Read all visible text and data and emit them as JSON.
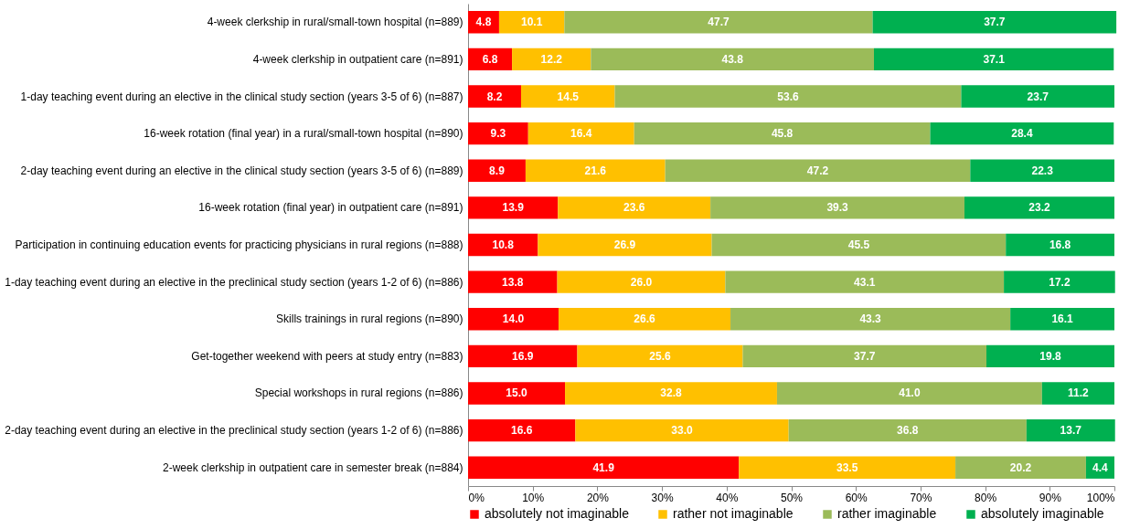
{
  "chart_data": {
    "type": "bar",
    "orientation": "horizontal",
    "stacked": true,
    "grid": false,
    "legend": "bottom",
    "categories": [
      "4-week clerkship in rural/small-town hospital (n=889)",
      "4-week clerkship in outpatient care (n=891)",
      "1-day teaching event during an elective in the clinical study section (years 3-5 of 6) (n=887)",
      "16-week rotation (final year) in a rural/small-town hospital (n=890)",
      "2-day teaching event during an elective in the clinical study section (years 3-5 of 6) (n=889)",
      "16-week rotation (final year) in outpatient care (n=891)",
      "Participation in continuing education events for practicing physicians in rural regions (n=888)",
      "1-day teaching event during an elective in the preclinical study section (years 1-2 of 6) (n=886)",
      "Skills trainings in rural regions (n=890)",
      "Get-together weekend with peers at study entry (n=883)",
      "Special workshops in rural regions (n=886)",
      "2-day teaching event during an elective in the preclinical study section (years 1-2 of 6) (n=886)",
      "2-week clerkship in outpatient care in semester break (n=884)"
    ],
    "series": [
      {
        "name": "absolutely not imaginable",
        "color": "#ff0000",
        "values": [
          4.8,
          6.8,
          8.2,
          9.3,
          8.9,
          13.9,
          10.8,
          13.8,
          14.0,
          16.9,
          15.0,
          16.6,
          41.9
        ],
        "value_labels": [
          "4.8",
          "6.8",
          "8.2",
          "9.3",
          "8.9",
          "13.9",
          "10.8",
          "13.8",
          "14.0",
          "16.9",
          "15.0",
          "16.6",
          "41.9"
        ]
      },
      {
        "name": "rather not imaginable",
        "color": "#ffc000",
        "values": [
          10.1,
          12.2,
          14.5,
          16.4,
          21.6,
          23.6,
          26.9,
          26.0,
          26.6,
          25.6,
          32.8,
          33.0,
          33.5
        ],
        "value_labels": [
          "10.1",
          "12.2",
          "14.5",
          "16.4",
          "21.6",
          "23.6",
          "26.9",
          "26.0",
          "26.6",
          "25.6",
          "32.8",
          "33.0",
          "33.5"
        ]
      },
      {
        "name": "rather imaginable",
        "color": "#9bbb59",
        "values": [
          47.7,
          43.8,
          53.6,
          45.8,
          47.2,
          39.3,
          45.5,
          43.1,
          43.3,
          37.7,
          41.0,
          36.8,
          20.2
        ],
        "value_labels": [
          "47.7",
          "43.8",
          "53.6",
          "45.8",
          "47.2",
          "39.3",
          "45.5",
          "43.1",
          "43.3",
          "37.7",
          "41.0",
          "36.8",
          "20.2"
        ]
      },
      {
        "name": "absolutely imaginable",
        "color": "#00b050",
        "values": [
          37.7,
          37.1,
          23.7,
          28.4,
          22.3,
          23.2,
          16.8,
          17.2,
          16.1,
          19.8,
          11.2,
          13.7,
          4.4
        ],
        "value_labels": [
          "37.7",
          "37.1",
          "23.7",
          "28.4",
          "22.3",
          "23.2",
          "16.8",
          "17.2",
          "16.1",
          "19.8",
          "11.2",
          "13.7",
          "4.4"
        ]
      }
    ],
    "xlim": [
      0,
      100
    ],
    "xticks": [
      {
        "value": 0,
        "label": "0%"
      },
      {
        "value": 10,
        "label": "10%"
      },
      {
        "value": 20,
        "label": "20%"
      },
      {
        "value": 30,
        "label": "30%"
      },
      {
        "value": 40,
        "label": "40%"
      },
      {
        "value": 50,
        "label": "50%"
      },
      {
        "value": 60,
        "label": "60%"
      },
      {
        "value": 70,
        "label": "70%"
      },
      {
        "value": 80,
        "label": "80%"
      },
      {
        "value": 90,
        "label": "90%"
      },
      {
        "value": 100,
        "label": "100%"
      }
    ]
  }
}
